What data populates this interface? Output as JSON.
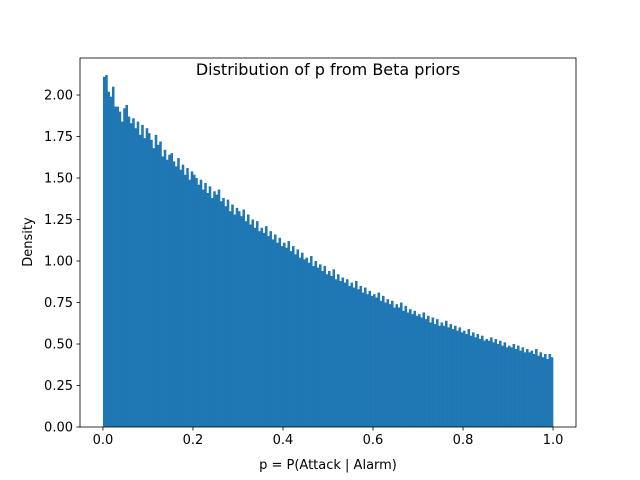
{
  "chart_data": {
    "type": "bar",
    "title": "Distribution of p from Beta priors",
    "xlabel": "p = P(Attack | Alarm)",
    "ylabel": "Density",
    "xlim": [
      -0.051,
      1.051
    ],
    "ylim": [
      0,
      2.223
    ],
    "bin_range": [
      0,
      1
    ],
    "bins": 200,
    "color": "#1f77b4",
    "grid": false,
    "xticks": [
      "0.0",
      "0.2",
      "0.4",
      "0.6",
      "0.8",
      "1.0"
    ],
    "xtick_values": [
      0,
      0.2,
      0.4,
      0.6,
      0.8,
      1.0
    ],
    "yticks": [
      "0.00",
      "0.25",
      "0.50",
      "0.75",
      "1.00",
      "1.25",
      "1.50",
      "1.75",
      "2.00"
    ],
    "ytick_values": [
      0,
      0.25,
      0.5,
      0.75,
      1.0,
      1.25,
      1.5,
      1.75,
      2.0
    ],
    "values": [
      2.11,
      2.12,
      2.02,
      1.99,
      2.05,
      1.93,
      1.93,
      1.9,
      1.84,
      1.92,
      1.94,
      1.87,
      1.83,
      1.86,
      1.8,
      1.84,
      1.76,
      1.82,
      1.74,
      1.8,
      1.77,
      1.73,
      1.68,
      1.76,
      1.7,
      1.72,
      1.63,
      1.67,
      1.61,
      1.64,
      1.65,
      1.6,
      1.57,
      1.62,
      1.55,
      1.58,
      1.52,
      1.56,
      1.49,
      1.54,
      1.52,
      1.5,
      1.46,
      1.49,
      1.43,
      1.47,
      1.41,
      1.45,
      1.38,
      1.42,
      1.4,
      1.43,
      1.36,
      1.38,
      1.33,
      1.37,
      1.3,
      1.34,
      1.28,
      1.32,
      1.3,
      1.27,
      1.31,
      1.24,
      1.28,
      1.22,
      1.25,
      1.2,
      1.24,
      1.18,
      1.2,
      1.17,
      1.21,
      1.15,
      1.18,
      1.13,
      1.16,
      1.11,
      1.14,
      1.09,
      1.11,
      1.08,
      1.12,
      1.06,
      1.09,
      1.04,
      1.07,
      1.02,
      1.05,
      1.01,
      1.02,
      0.99,
      1.03,
      0.97,
      1.0,
      0.96,
      0.98,
      0.94,
      0.97,
      0.92,
      0.94,
      0.91,
      0.95,
      0.89,
      0.92,
      0.88,
      0.9,
      0.87,
      0.89,
      0.85,
      0.87,
      0.84,
      0.88,
      0.83,
      0.85,
      0.81,
      0.84,
      0.8,
      0.82,
      0.79,
      0.8,
      0.78,
      0.81,
      0.76,
      0.79,
      0.75,
      0.77,
      0.74,
      0.76,
      0.72,
      0.74,
      0.72,
      0.75,
      0.7,
      0.73,
      0.69,
      0.71,
      0.68,
      0.7,
      0.67,
      0.68,
      0.66,
      0.69,
      0.65,
      0.67,
      0.63,
      0.66,
      0.62,
      0.65,
      0.61,
      0.63,
      0.61,
      0.64,
      0.6,
      0.62,
      0.59,
      0.61,
      0.58,
      0.6,
      0.57,
      0.58,
      0.56,
      0.59,
      0.55,
      0.57,
      0.54,
      0.56,
      0.53,
      0.55,
      0.52,
      0.53,
      0.52,
      0.54,
      0.51,
      0.53,
      0.5,
      0.52,
      0.49,
      0.51,
      0.48,
      0.49,
      0.48,
      0.5,
      0.47,
      0.49,
      0.46,
      0.48,
      0.45,
      0.47,
      0.45,
      0.46,
      0.44,
      0.47,
      0.43,
      0.45,
      0.42,
      0.44,
      0.41,
      0.44,
      0.42
    ]
  }
}
